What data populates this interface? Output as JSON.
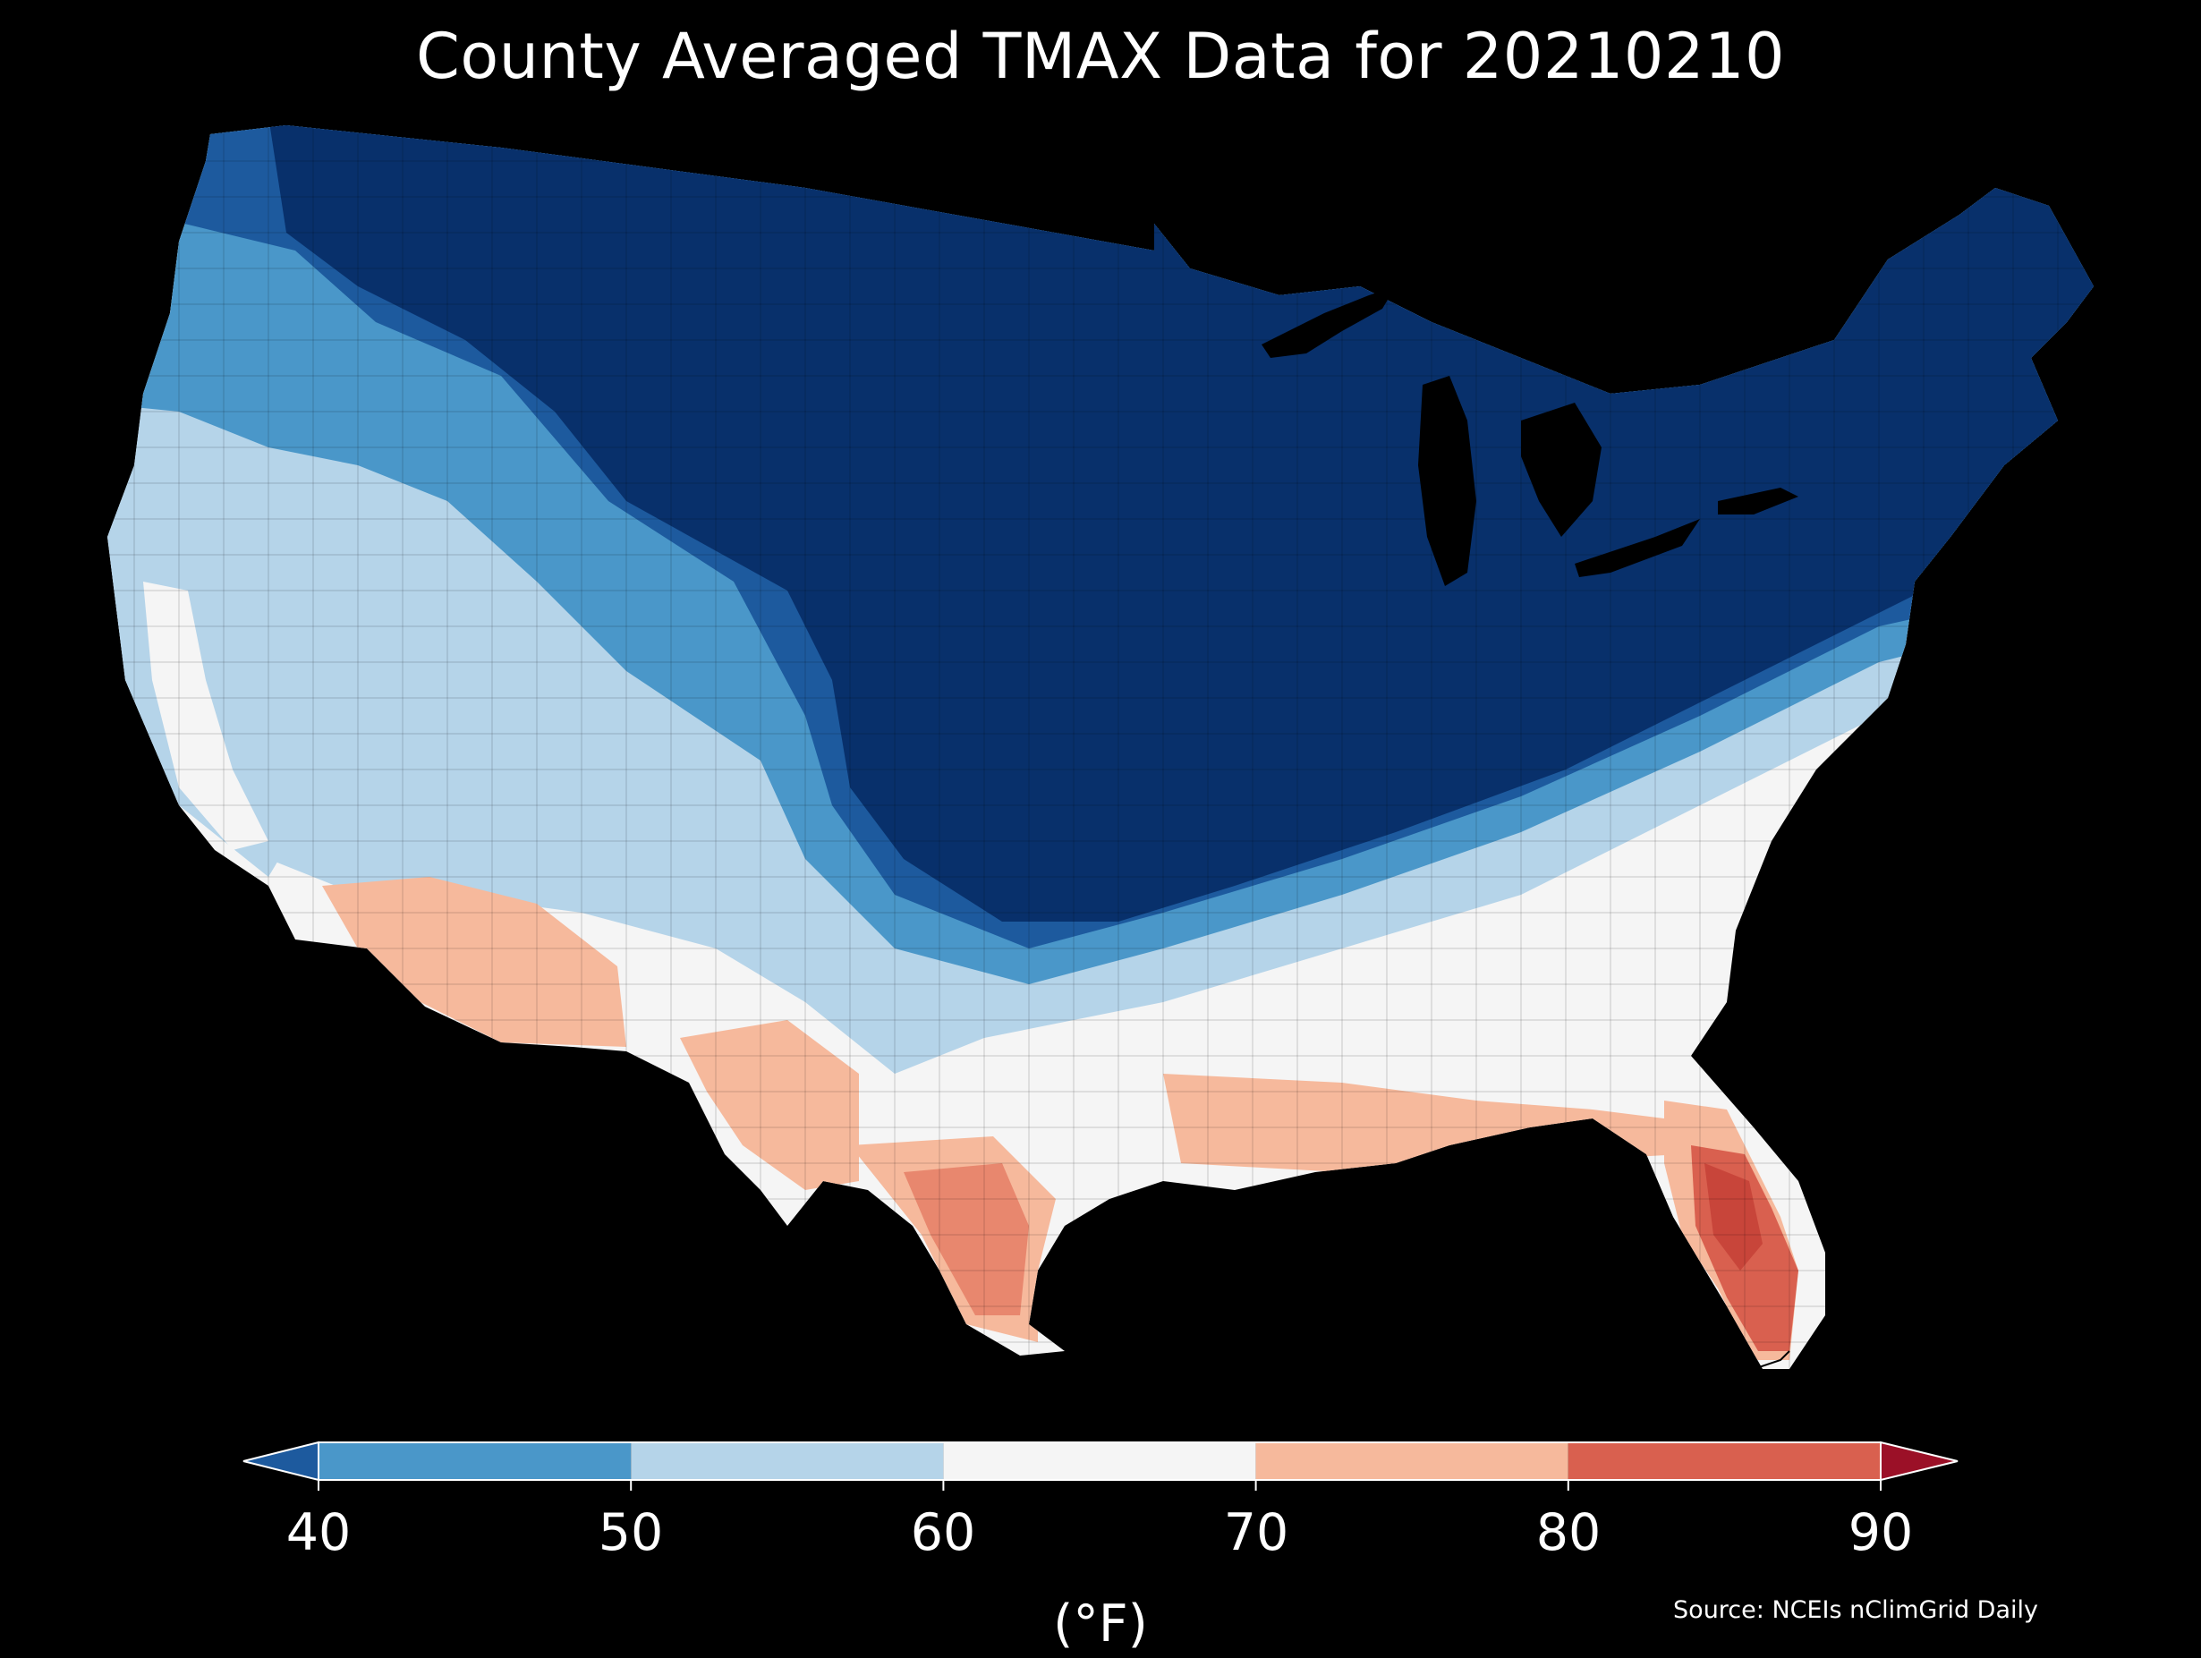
{
  "title": "County Averaged TMAX Data for 20210210",
  "colorbar": {
    "ticks": [
      "40",
      "50",
      "60",
      "70",
      "80",
      "90"
    ],
    "unit": "(°F)",
    "bins": [
      {
        "from": 40,
        "to": 50,
        "color": "#4a97c9"
      },
      {
        "from": 50,
        "to": 60,
        "color": "#b5d4e9"
      },
      {
        "from": 60,
        "to": 70,
        "color": "#f5f5f5"
      },
      {
        "from": 70,
        "to": 80,
        "color": "#f6b99c"
      },
      {
        "from": 80,
        "to": 90,
        "color": "#d9604f"
      }
    ],
    "under_color": "#1d5a9e",
    "over_color": "#9b1027"
  },
  "source": "Source: NCEIs nClimGrid Daily",
  "map": {
    "region": "Contiguous United States counties",
    "colors": {
      "very_cold": "#08306b",
      "cold": "#1d5a9e",
      "cool": "#4a97c9",
      "mild": "#b5d4e9",
      "neutral": "#f5f5f5",
      "warm": "#f6b99c",
      "hot": "#d9604f"
    }
  }
}
